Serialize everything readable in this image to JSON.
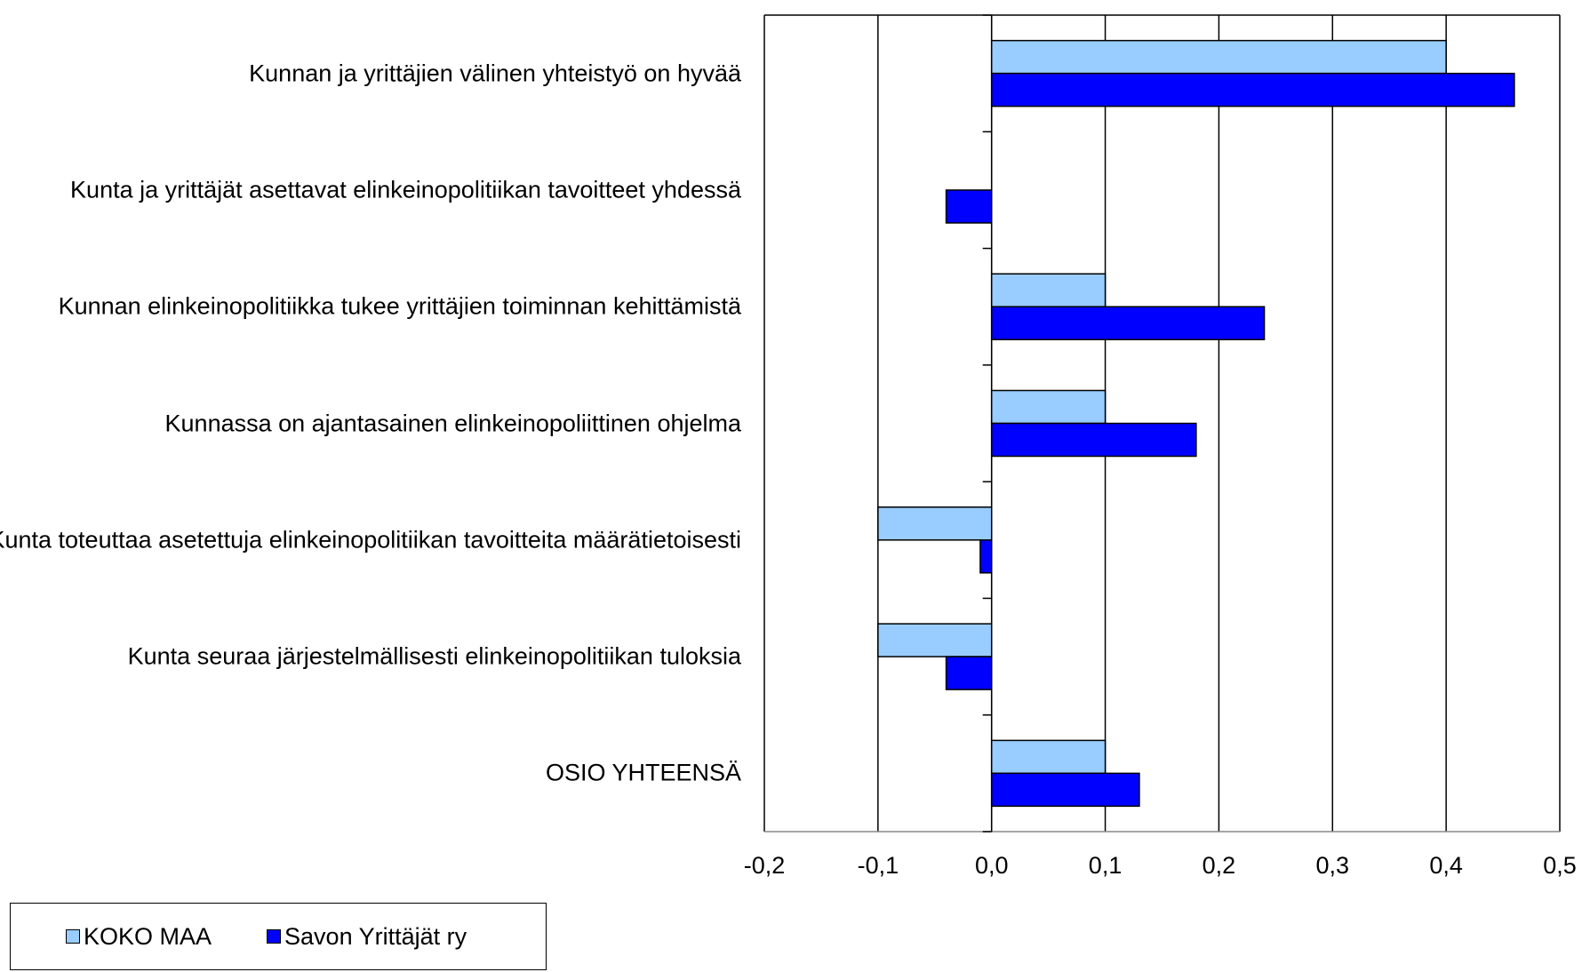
{
  "chart_data": {
    "type": "bar",
    "orientation": "horizontal",
    "categories": [
      "Kunnan ja yrittäjien välinen yhteistyö on hyvää",
      "Kunta ja yrittäjät asettavat elinkeinopolitiikan tavoitteet yhdessä",
      "Kunnan elinkeinopolitiikka tukee yrittäjien toiminnan kehittämistä",
      "Kunnassa on ajantasainen elinkeinopoliittinen ohjelma",
      "Kunta toteuttaa asetettuja elinkeinopolitiikan tavoitteita määrätietoisesti",
      "Kunta seuraa järjestelmällisesti elinkeinopolitiikan tuloksia",
      "OSIO YHTEENSÄ"
    ],
    "series": [
      {
        "name": "KOKO MAA",
        "color": "#99ccff",
        "values": [
          0.4,
          0,
          0.1,
          0.1,
          -0.1,
          -0.1,
          0.1
        ]
      },
      {
        "name": "Savon Yrittäjät ry",
        "color": "#0000ff",
        "values": [
          0.46,
          -0.04,
          0.24,
          0.18,
          -0.01,
          -0.04,
          0.13
        ]
      }
    ],
    "xlim": [
      -0.2,
      0.5
    ],
    "xticks": [
      {
        "value": -0.2,
        "label": "-0,2"
      },
      {
        "value": -0.1,
        "label": "-0,1"
      },
      {
        "value": 0,
        "label": "0,0"
      },
      {
        "value": 0.1,
        "label": "0,1"
      },
      {
        "value": 0.2,
        "label": "0,2"
      },
      {
        "value": 0.3,
        "label": "0,3"
      },
      {
        "value": 0.4,
        "label": "0,4"
      },
      {
        "value": 0.5,
        "label": "0,5"
      }
    ],
    "grid": true,
    "legend": "bottom-left"
  }
}
